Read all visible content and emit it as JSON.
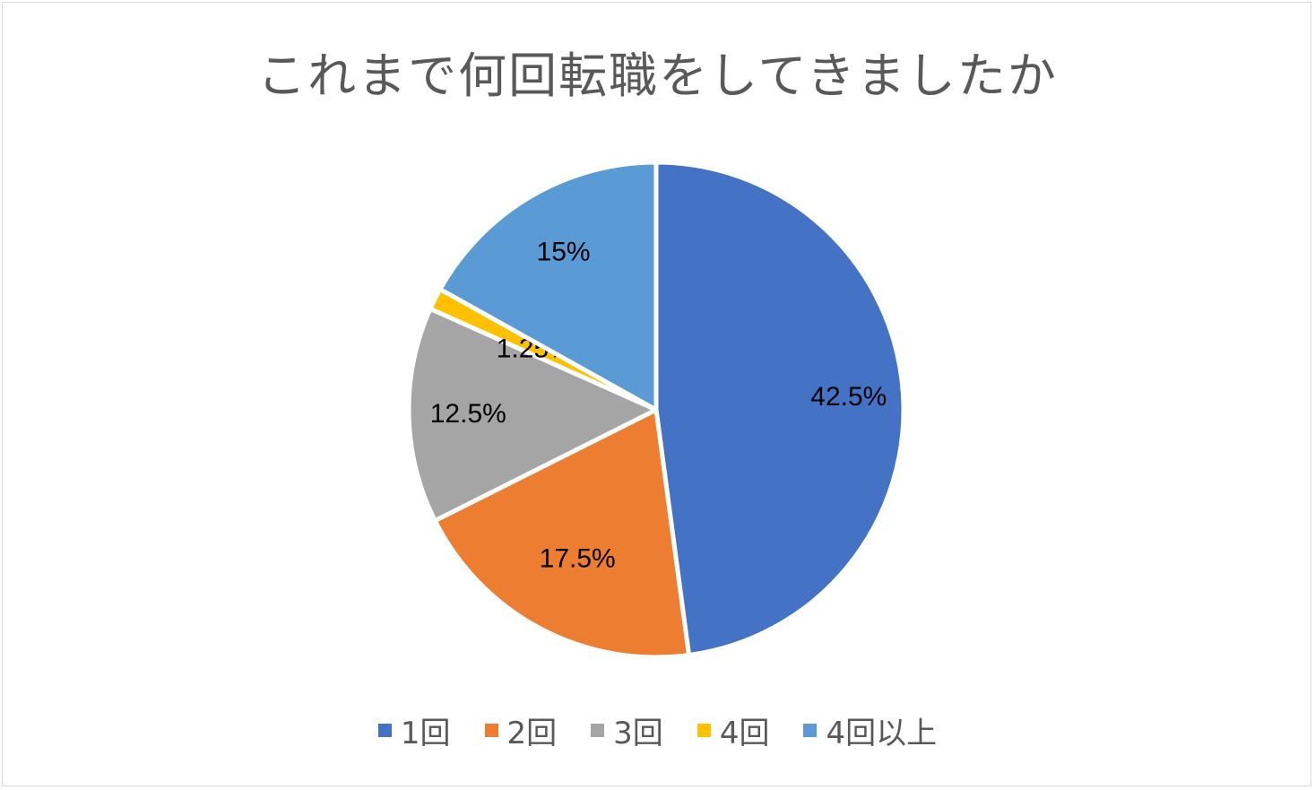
{
  "chart_data": {
    "type": "pie",
    "title": "これまで何回転職をしてきましたか",
    "categories": [
      "1回",
      "2回",
      "3回",
      "4回",
      "4回以上"
    ],
    "values": [
      42.5,
      17.5,
      12.5,
      1.25,
      15
    ],
    "data_labels": [
      "42.5%",
      "17.5%",
      "12.5%",
      "1.25%",
      "15%"
    ],
    "colors": [
      "#4472C4",
      "#ED7D31",
      "#A5A5A5",
      "#FFC000",
      "#5B9BD5"
    ],
    "legend_position": "bottom",
    "start_angle": "12 o'clock",
    "direction": "clockwise"
  }
}
